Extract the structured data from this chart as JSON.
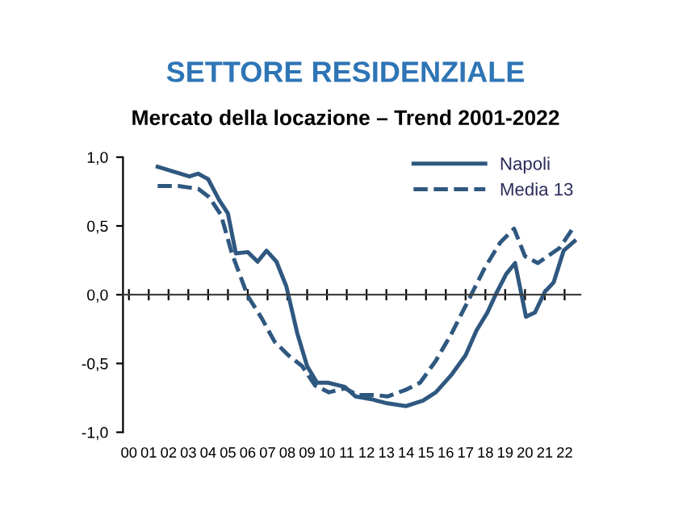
{
  "chart_data": {
    "type": "line",
    "title": "SETTORE RESIDENZIALE",
    "subtitle": "Mercato della locazione – Trend 2001-2022",
    "xlim": [
      -0.3,
      22.8
    ],
    "ylim": [
      -1,
      1
    ],
    "yticks": [
      {
        "value": -1,
        "label": "-1,0"
      },
      {
        "value": -0.5,
        "label": "-0,5"
      },
      {
        "value": 0,
        "label": "0,0"
      },
      {
        "value": 0.5,
        "label": "0,5"
      },
      {
        "value": 1,
        "label": "1,0"
      }
    ],
    "xticks": [
      {
        "value": 0,
        "label": "00"
      },
      {
        "value": 1,
        "label": "01"
      },
      {
        "value": 2,
        "label": "02"
      },
      {
        "value": 3,
        "label": "03"
      },
      {
        "value": 4,
        "label": "04"
      },
      {
        "value": 5,
        "label": "05"
      },
      {
        "value": 6,
        "label": "06"
      },
      {
        "value": 7,
        "label": "07"
      },
      {
        "value": 8,
        "label": "08"
      },
      {
        "value": 9,
        "label": "09"
      },
      {
        "value": 10,
        "label": "10"
      },
      {
        "value": 11,
        "label": "11"
      },
      {
        "value": 12,
        "label": "12"
      },
      {
        "value": 13,
        "label": "13"
      },
      {
        "value": 14,
        "label": "14"
      },
      {
        "value": 15,
        "label": "15"
      },
      {
        "value": 16,
        "label": "16"
      },
      {
        "value": 17,
        "label": "17"
      },
      {
        "value": 18,
        "label": "18"
      },
      {
        "value": 19,
        "label": "19"
      },
      {
        "value": 20,
        "label": "20"
      },
      {
        "value": 21,
        "label": "21"
      },
      {
        "value": 22,
        "label": "22"
      }
    ],
    "legend": "top right",
    "marker": "none",
    "series": [
      {
        "name": "Napoli",
        "color": "#2f5880",
        "line_style": "solid",
        "x": [
          1.45,
          3.05,
          3.5,
          4.0,
          4.55,
          5.0,
          5.4,
          6.0,
          6.5,
          6.95,
          7.45,
          7.95,
          8.5,
          9.0,
          9.5,
          10.05,
          10.9,
          11.45,
          12.25,
          12.5,
          13.05,
          14.0,
          14.85,
          15.5,
          16.3,
          17.0,
          17.55,
          18.1,
          18.55,
          19.05,
          19.5,
          20.05,
          20.5,
          21.0,
          21.45,
          21.95,
          22.5
        ],
        "values": [
          0.93,
          0.86,
          0.88,
          0.84,
          0.69,
          0.59,
          0.3,
          0.31,
          0.24,
          0.32,
          0.24,
          0.06,
          -0.28,
          -0.52,
          -0.64,
          -0.64,
          -0.67,
          -0.74,
          -0.76,
          -0.77,
          -0.79,
          -0.81,
          -0.77,
          -0.71,
          -0.58,
          -0.44,
          -0.26,
          -0.13,
          0.01,
          0.15,
          0.23,
          -0.16,
          -0.13,
          0.02,
          0.09,
          0.32,
          0.39
        ]
      },
      {
        "name": "Media 13",
        "color": "#2f5880",
        "line_style": "dashed",
        "x": [
          1.45,
          2.5,
          3.5,
          4.05,
          4.65,
          5.2,
          6.0,
          6.7,
          7.35,
          8.05,
          8.75,
          9.4,
          10.1,
          10.9,
          11.55,
          12.5,
          13.05,
          14.0,
          14.7,
          15.5,
          16.3,
          17.25,
          17.95,
          18.75,
          19.45,
          20.0,
          20.65,
          21.75,
          22.5
        ],
        "values": [
          0.79,
          0.79,
          0.77,
          0.71,
          0.58,
          0.3,
          -0.01,
          -0.17,
          -0.34,
          -0.44,
          -0.52,
          -0.66,
          -0.71,
          -0.68,
          -0.73,
          -0.73,
          -0.74,
          -0.69,
          -0.64,
          -0.48,
          -0.28,
          -0.01,
          0.19,
          0.38,
          0.48,
          0.28,
          0.23,
          0.34,
          0.5
        ]
      }
    ]
  }
}
